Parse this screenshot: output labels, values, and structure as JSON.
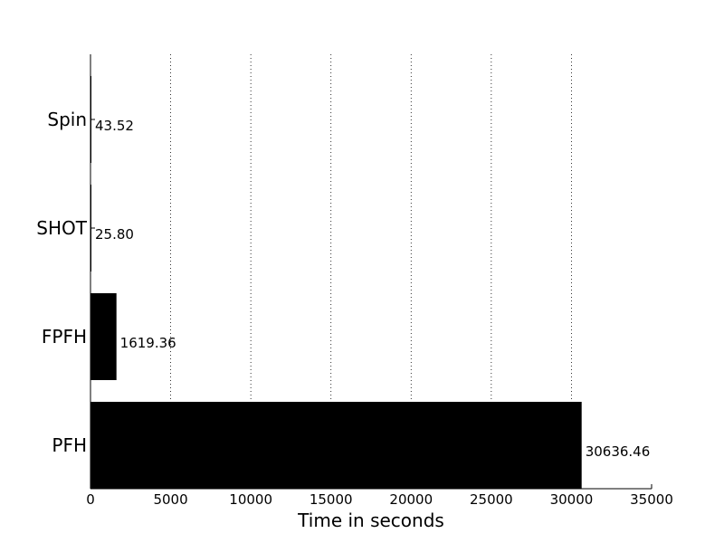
{
  "chart_data": {
    "type": "bar",
    "orientation": "horizontal",
    "title": "",
    "xlabel": "Time in seconds",
    "ylabel": "",
    "categories": [
      "PFH",
      "FPFH",
      "SHOT",
      "Spin"
    ],
    "values": [
      30636.46,
      1619.36,
      25.8,
      43.52
    ],
    "value_labels": [
      "30636.46",
      "1619.36",
      "25.80",
      "43.52"
    ],
    "xlim": [
      0,
      35000
    ],
    "xticks": [
      0,
      5000,
      10000,
      15000,
      20000,
      25000,
      30000,
      35000
    ],
    "grid": "x-dotted",
    "legend": "none",
    "colors": {
      "bar": "#000000",
      "grid": "#000000",
      "axis": "#000000"
    }
  }
}
